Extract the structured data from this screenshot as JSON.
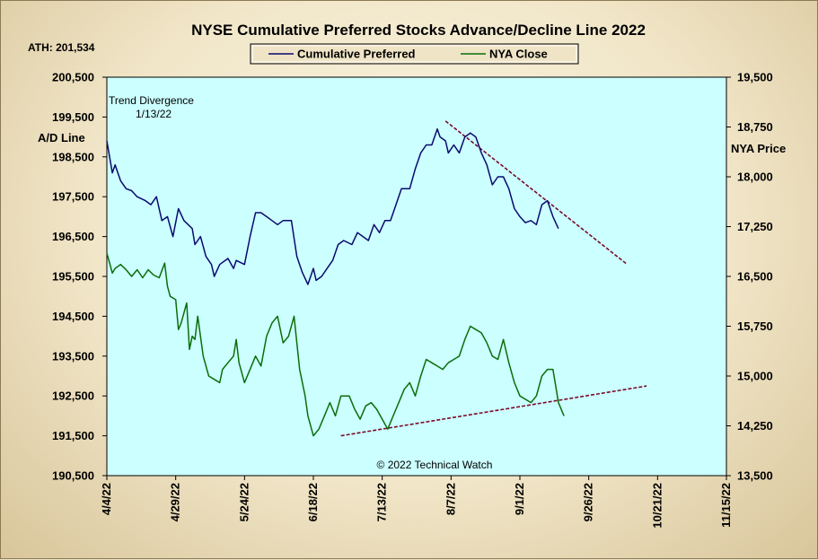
{
  "chart_data": {
    "type": "line",
    "title": "NYSE Cumulative  Preferred Stocks Advance/Decline  Line 2022",
    "ath_label": "ATH: 201,534",
    "ylabel_left": "A/D Line",
    "ylabel_right": "NYA Price",
    "credit": "© 2022 Technical Watch",
    "annotation": {
      "line1": "Trend  Divergence",
      "line2": "1/13/22"
    },
    "legend": {
      "placement": "top-center"
    },
    "grid": false,
    "x_ticks": [
      "4/4/22",
      "4/29/22",
      "5/24/22",
      "6/18/22",
      "7/13/22",
      "8/7/22",
      "9/1/22",
      "9/26/22",
      "10/21/22",
      "11/15/22"
    ],
    "xlim": [
      "2022-04-04",
      "2022-11-15"
    ],
    "ylim_left": [
      190500,
      200500
    ],
    "ylim_right": [
      13500,
      19500
    ],
    "y_ticks_left": [
      "200,500",
      "199,500",
      "198,500",
      "197,500",
      "196,500",
      "195,500",
      "194,500",
      "193,500",
      "192,500",
      "191,500",
      "190,500"
    ],
    "y_ticks_right": [
      "19,500",
      "18,750",
      "18,000",
      "17,250",
      "16,500",
      "15,750",
      "15,000",
      "14,250",
      "13,500"
    ],
    "series": [
      {
        "name": "Cumulative Preferred",
        "axis": "left",
        "color": "#0a0a6e",
        "points": [
          [
            "2022-04-04",
            198900
          ],
          [
            "2022-04-06",
            198100
          ],
          [
            "2022-04-07",
            198300
          ],
          [
            "2022-04-09",
            197900
          ],
          [
            "2022-04-11",
            197700
          ],
          [
            "2022-04-13",
            197650
          ],
          [
            "2022-04-15",
            197500
          ],
          [
            "2022-04-18",
            197400
          ],
          [
            "2022-04-20",
            197300
          ],
          [
            "2022-04-22",
            197500
          ],
          [
            "2022-04-24",
            196900
          ],
          [
            "2022-04-26",
            197000
          ],
          [
            "2022-04-28",
            196500
          ],
          [
            "2022-04-30",
            197200
          ],
          [
            "2022-05-02",
            196900
          ],
          [
            "2022-05-05",
            196700
          ],
          [
            "2022-05-06",
            196300
          ],
          [
            "2022-05-08",
            196500
          ],
          [
            "2022-05-10",
            196000
          ],
          [
            "2022-05-12",
            195800
          ],
          [
            "2022-05-13",
            195500
          ],
          [
            "2022-05-15",
            195800
          ],
          [
            "2022-05-18",
            195950
          ],
          [
            "2022-05-20",
            195700
          ],
          [
            "2022-05-21",
            195900
          ],
          [
            "2022-05-24",
            195800
          ],
          [
            "2022-05-26",
            196500
          ],
          [
            "2022-05-28",
            197100
          ],
          [
            "2022-05-30",
            197100
          ],
          [
            "2022-06-01",
            197000
          ],
          [
            "2022-06-03",
            196900
          ],
          [
            "2022-06-05",
            196800
          ],
          [
            "2022-06-07",
            196900
          ],
          [
            "2022-06-10",
            196900
          ],
          [
            "2022-06-12",
            196000
          ],
          [
            "2022-06-14",
            195600
          ],
          [
            "2022-06-16",
            195300
          ],
          [
            "2022-06-18",
            195700
          ],
          [
            "2022-06-19",
            195400
          ],
          [
            "2022-06-21",
            195500
          ],
          [
            "2022-06-23",
            195700
          ],
          [
            "2022-06-25",
            195900
          ],
          [
            "2022-06-27",
            196300
          ],
          [
            "2022-06-29",
            196400
          ],
          [
            "2022-07-02",
            196300
          ],
          [
            "2022-07-04",
            196600
          ],
          [
            "2022-07-06",
            196500
          ],
          [
            "2022-07-08",
            196400
          ],
          [
            "2022-07-10",
            196800
          ],
          [
            "2022-07-12",
            196600
          ],
          [
            "2022-07-14",
            196900
          ],
          [
            "2022-07-16",
            196900
          ],
          [
            "2022-07-18",
            197300
          ],
          [
            "2022-07-20",
            197700
          ],
          [
            "2022-07-23",
            197700
          ],
          [
            "2022-07-25",
            198200
          ],
          [
            "2022-07-27",
            198600
          ],
          [
            "2022-07-29",
            198800
          ],
          [
            "2022-07-31",
            198800
          ],
          [
            "2022-08-02",
            199200
          ],
          [
            "2022-08-03",
            199000
          ],
          [
            "2022-08-05",
            198900
          ],
          [
            "2022-08-06",
            198600
          ],
          [
            "2022-08-08",
            198800
          ],
          [
            "2022-08-10",
            198600
          ],
          [
            "2022-08-12",
            199000
          ],
          [
            "2022-08-14",
            199100
          ],
          [
            "2022-08-16",
            199000
          ],
          [
            "2022-08-18",
            198600
          ],
          [
            "2022-08-20",
            198300
          ],
          [
            "2022-08-22",
            197800
          ],
          [
            "2022-08-24",
            198000
          ],
          [
            "2022-08-26",
            198000
          ],
          [
            "2022-08-28",
            197700
          ],
          [
            "2022-08-30",
            197200
          ],
          [
            "2022-09-01",
            197000
          ],
          [
            "2022-09-03",
            196850
          ],
          [
            "2022-09-05",
            196900
          ],
          [
            "2022-09-07",
            196800
          ],
          [
            "2022-09-09",
            197300
          ],
          [
            "2022-09-11",
            197400
          ],
          [
            "2022-09-13",
            197000
          ],
          [
            "2022-09-15",
            196700
          ]
        ]
      },
      {
        "name": "NYA Close",
        "axis": "right",
        "color": "#0a6e0a",
        "points": [
          [
            "2022-04-04",
            16850
          ],
          [
            "2022-04-05",
            16700
          ],
          [
            "2022-04-06",
            16550
          ],
          [
            "2022-04-07",
            16620
          ],
          [
            "2022-04-09",
            16680
          ],
          [
            "2022-04-11",
            16600
          ],
          [
            "2022-04-13",
            16500
          ],
          [
            "2022-04-15",
            16600
          ],
          [
            "2022-04-17",
            16480
          ],
          [
            "2022-04-19",
            16600
          ],
          [
            "2022-04-21",
            16520
          ],
          [
            "2022-04-23",
            16480
          ],
          [
            "2022-04-25",
            16700
          ],
          [
            "2022-04-26",
            16350
          ],
          [
            "2022-04-27",
            16200
          ],
          [
            "2022-04-29",
            16150
          ],
          [
            "2022-04-30",
            15700
          ],
          [
            "2022-05-01",
            15800
          ],
          [
            "2022-05-03",
            16100
          ],
          [
            "2022-05-04",
            15400
          ],
          [
            "2022-05-05",
            15600
          ],
          [
            "2022-05-06",
            15550
          ],
          [
            "2022-05-07",
            15900
          ],
          [
            "2022-05-09",
            15300
          ],
          [
            "2022-05-11",
            15000
          ],
          [
            "2022-05-13",
            14950
          ],
          [
            "2022-05-15",
            14900
          ],
          [
            "2022-05-16",
            15100
          ],
          [
            "2022-05-18",
            15200
          ],
          [
            "2022-05-20",
            15300
          ],
          [
            "2022-05-21",
            15550
          ],
          [
            "2022-05-22",
            15200
          ],
          [
            "2022-05-24",
            14900
          ],
          [
            "2022-05-26",
            15100
          ],
          [
            "2022-05-28",
            15300
          ],
          [
            "2022-05-30",
            15150
          ],
          [
            "2022-06-01",
            15600
          ],
          [
            "2022-06-03",
            15800
          ],
          [
            "2022-06-05",
            15900
          ],
          [
            "2022-06-07",
            15500
          ],
          [
            "2022-06-09",
            15600
          ],
          [
            "2022-06-11",
            15900
          ],
          [
            "2022-06-13",
            15100
          ],
          [
            "2022-06-15",
            14700
          ],
          [
            "2022-06-16",
            14400
          ],
          [
            "2022-06-18",
            14100
          ],
          [
            "2022-06-20",
            14200
          ],
          [
            "2022-06-22",
            14400
          ],
          [
            "2022-06-24",
            14600
          ],
          [
            "2022-06-26",
            14400
          ],
          [
            "2022-06-28",
            14700
          ],
          [
            "2022-07-01",
            14700
          ],
          [
            "2022-07-03",
            14500
          ],
          [
            "2022-07-05",
            14350
          ],
          [
            "2022-07-07",
            14550
          ],
          [
            "2022-07-09",
            14600
          ],
          [
            "2022-07-11",
            14500
          ],
          [
            "2022-07-13",
            14350
          ],
          [
            "2022-07-15",
            14200
          ],
          [
            "2022-07-17",
            14400
          ],
          [
            "2022-07-19",
            14600
          ],
          [
            "2022-07-21",
            14800
          ],
          [
            "2022-07-23",
            14900
          ],
          [
            "2022-07-25",
            14700
          ],
          [
            "2022-07-27",
            15000
          ],
          [
            "2022-07-29",
            15250
          ],
          [
            "2022-07-31",
            15200
          ],
          [
            "2022-08-02",
            15150
          ],
          [
            "2022-08-04",
            15100
          ],
          [
            "2022-08-06",
            15200
          ],
          [
            "2022-08-08",
            15250
          ],
          [
            "2022-08-10",
            15300
          ],
          [
            "2022-08-12",
            15550
          ],
          [
            "2022-08-14",
            15750
          ],
          [
            "2022-08-16",
            15700
          ],
          [
            "2022-08-18",
            15650
          ],
          [
            "2022-08-20",
            15500
          ],
          [
            "2022-08-22",
            15300
          ],
          [
            "2022-08-24",
            15250
          ],
          [
            "2022-08-26",
            15550
          ],
          [
            "2022-08-28",
            15200
          ],
          [
            "2022-08-30",
            14900
          ],
          [
            "2022-09-01",
            14700
          ],
          [
            "2022-09-03",
            14650
          ],
          [
            "2022-09-05",
            14600
          ],
          [
            "2022-09-07",
            14700
          ],
          [
            "2022-09-09",
            15000
          ],
          [
            "2022-09-11",
            15100
          ],
          [
            "2022-09-13",
            15100
          ],
          [
            "2022-09-14",
            14850
          ],
          [
            "2022-09-15",
            14600
          ],
          [
            "2022-09-17",
            14400
          ]
        ]
      }
    ],
    "trendlines": [
      {
        "axis": "left",
        "color": "#7a0a2a",
        "from": [
          "2022-08-05",
          199400
        ],
        "to": [
          "2022-10-10",
          195800
        ]
      },
      {
        "axis": "right",
        "color": "#7a0a2a",
        "from": [
          "2022-06-28",
          14100
        ],
        "to": [
          "2022-10-17",
          14850
        ]
      }
    ]
  }
}
